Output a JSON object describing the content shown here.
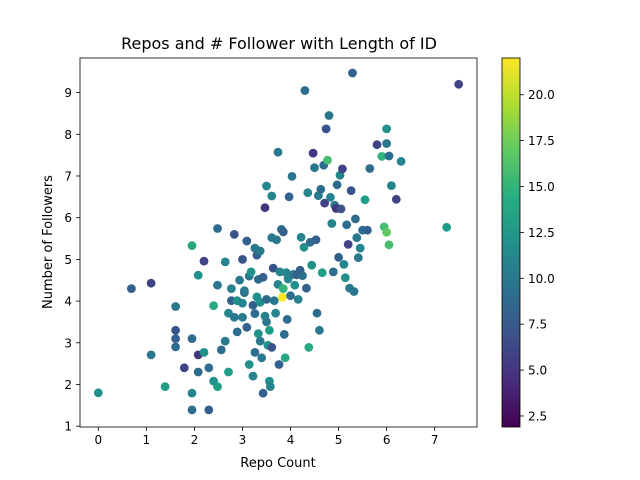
{
  "chart_data": {
    "type": "scatter",
    "title": "Repos and # Follower with Length of ID",
    "xlabel": "Repo Count",
    "ylabel": "Number of Followers",
    "xlim": [
      -0.38,
      7.88
    ],
    "ylim": [
      0.98,
      9.83
    ],
    "xticks": [
      0,
      1,
      2,
      3,
      4,
      5,
      6,
      7
    ],
    "yticks": [
      1,
      2,
      3,
      4,
      5,
      6,
      7,
      8,
      9
    ],
    "colorbar": {
      "label": "",
      "range": [
        1.9,
        22.0
      ],
      "ticks": [
        2.5,
        5.0,
        7.5,
        10.0,
        12.5,
        15.0,
        17.5,
        20.0
      ],
      "colormap": "viridis"
    },
    "points": [
      [
        0.0,
        1.8,
        12
      ],
      [
        0.69,
        4.3,
        8
      ],
      [
        1.1,
        4.43,
        6
      ],
      [
        1.1,
        2.71,
        10
      ],
      [
        1.39,
        1.95,
        13
      ],
      [
        1.61,
        3.87,
        10
      ],
      [
        1.61,
        3.3,
        7
      ],
      [
        1.61,
        3.1,
        8
      ],
      [
        1.61,
        2.9,
        9
      ],
      [
        1.79,
        2.4,
        6
      ],
      [
        1.95,
        5.33,
        14
      ],
      [
        1.95,
        3.1,
        9
      ],
      [
        1.95,
        1.79,
        11
      ],
      [
        1.95,
        1.39,
        9
      ],
      [
        2.08,
        4.62,
        12
      ],
      [
        2.08,
        2.71,
        5
      ],
      [
        2.08,
        2.3,
        9
      ],
      [
        2.2,
        2.77,
        12
      ],
      [
        2.2,
        4.96,
        6
      ],
      [
        2.3,
        1.39,
        8
      ],
      [
        2.3,
        2.4,
        9
      ],
      [
        2.4,
        3.89,
        14
      ],
      [
        2.4,
        2.08,
        12
      ],
      [
        2.48,
        5.74,
        9
      ],
      [
        2.48,
        4.38,
        10
      ],
      [
        2.48,
        1.95,
        13
      ],
      [
        2.56,
        2.83,
        9
      ],
      [
        2.64,
        4.94,
        11
      ],
      [
        2.64,
        3.04,
        10
      ],
      [
        2.71,
        3.71,
        11
      ],
      [
        2.71,
        2.3,
        13
      ],
      [
        2.77,
        4.3,
        11
      ],
      [
        2.77,
        4.01,
        8
      ],
      [
        2.83,
        3.61,
        10
      ],
      [
        2.83,
        5.6,
        7
      ],
      [
        2.89,
        4.01,
        12
      ],
      [
        2.89,
        3.26,
        9
      ],
      [
        2.94,
        4.5,
        10
      ],
      [
        3.0,
        5.0,
        7
      ],
      [
        3.0,
        3.95,
        11
      ],
      [
        3.0,
        3.61,
        10
      ],
      [
        3.04,
        4.2,
        9
      ],
      [
        3.04,
        4.25,
        10
      ],
      [
        3.09,
        5.44,
        8
      ],
      [
        3.09,
        3.37,
        8
      ],
      [
        3.14,
        2.48,
        12
      ],
      [
        3.14,
        4.6,
        10
      ],
      [
        3.18,
        4.7,
        12
      ],
      [
        3.22,
        2.2,
        11
      ],
      [
        3.22,
        3.9,
        8
      ],
      [
        3.26,
        5.27,
        10
      ],
      [
        3.26,
        3.7,
        9
      ],
      [
        3.26,
        2.77,
        9
      ],
      [
        3.3,
        5.1,
        8
      ],
      [
        3.3,
        4.1,
        12
      ],
      [
        3.33,
        3.22,
        12
      ],
      [
        3.33,
        4.52,
        9
      ],
      [
        3.37,
        5.2,
        10
      ],
      [
        3.37,
        3.97,
        12
      ],
      [
        3.37,
        3.04,
        10
      ],
      [
        3.4,
        2.64,
        10
      ],
      [
        3.43,
        1.79,
        8
      ],
      [
        3.43,
        4.57,
        8
      ],
      [
        3.47,
        6.24,
        5
      ],
      [
        3.47,
        3.64,
        11
      ],
      [
        3.5,
        6.76,
        11
      ],
      [
        3.5,
        4.04,
        9
      ],
      [
        3.5,
        3.5,
        10
      ],
      [
        3.53,
        2.94,
        12
      ],
      [
        3.56,
        3.3,
        13
      ],
      [
        3.56,
        2.08,
        12
      ],
      [
        3.58,
        1.95,
        11
      ],
      [
        3.61,
        6.52,
        11
      ],
      [
        3.61,
        5.52,
        10
      ],
      [
        3.61,
        2.89,
        7
      ],
      [
        3.64,
        4.79,
        7
      ],
      [
        3.66,
        4.01,
        10
      ],
      [
        3.69,
        3.71,
        11
      ],
      [
        3.71,
        5.47,
        10
      ],
      [
        3.74,
        7.57,
        10
      ],
      [
        3.74,
        4.4,
        11
      ],
      [
        3.76,
        2.48,
        8
      ],
      [
        3.78,
        4.7,
        11
      ],
      [
        3.81,
        5.72,
        9
      ],
      [
        3.83,
        4.09,
        22
      ],
      [
        3.85,
        5.66,
        8
      ],
      [
        3.85,
        4.3,
        15
      ],
      [
        3.87,
        3.2,
        9
      ],
      [
        3.89,
        2.64,
        14
      ],
      [
        3.91,
        4.68,
        11
      ],
      [
        3.93,
        3.56,
        9
      ],
      [
        3.95,
        4.53,
        11
      ],
      [
        3.97,
        6.5,
        8
      ],
      [
        4.0,
        4.13,
        9
      ],
      [
        4.03,
        6.99,
        10
      ],
      [
        4.06,
        4.64,
        10
      ],
      [
        4.09,
        4.38,
        12
      ],
      [
        4.13,
        4.63,
        8
      ],
      [
        4.16,
        4.04,
        11
      ],
      [
        4.2,
        4.74,
        8
      ],
      [
        4.22,
        5.53,
        11
      ],
      [
        4.25,
        4.61,
        9
      ],
      [
        4.28,
        5.29,
        12
      ],
      [
        4.3,
        9.05,
        9
      ],
      [
        4.33,
        4.31,
        8
      ],
      [
        4.36,
        6.6,
        11
      ],
      [
        4.38,
        2.89,
        14
      ],
      [
        4.41,
        5.41,
        9
      ],
      [
        4.44,
        4.86,
        12
      ],
      [
        4.47,
        7.55,
        5
      ],
      [
        4.5,
        7.2,
        10
      ],
      [
        4.53,
        5.47,
        8
      ],
      [
        4.55,
        3.71,
        9
      ],
      [
        4.58,
        6.53,
        10
      ],
      [
        4.6,
        3.3,
        10
      ],
      [
        4.63,
        6.68,
        9
      ],
      [
        4.66,
        4.68,
        13
      ],
      [
        4.69,
        7.26,
        9
      ],
      [
        4.71,
        6.35,
        6
      ],
      [
        4.74,
        8.13,
        7
      ],
      [
        4.77,
        7.38,
        16
      ],
      [
        4.8,
        8.45,
        10
      ],
      [
        4.83,
        6.49,
        11
      ],
      [
        4.86,
        5.86,
        11
      ],
      [
        4.89,
        4.7,
        9
      ],
      [
        4.92,
        6.3,
        10
      ],
      [
        4.95,
        6.22,
        5
      ],
      [
        4.97,
        6.79,
        9
      ],
      [
        5.0,
        5.05,
        8
      ],
      [
        5.03,
        7.02,
        11
      ],
      [
        5.05,
        6.21,
        7
      ],
      [
        5.08,
        7.17,
        6
      ],
      [
        5.11,
        4.88,
        11
      ],
      [
        5.14,
        4.56,
        12
      ],
      [
        5.17,
        5.83,
        9
      ],
      [
        5.2,
        5.36,
        6
      ],
      [
        5.23,
        4.31,
        10
      ],
      [
        5.26,
        6.65,
        7
      ],
      [
        5.29,
        9.47,
        8
      ],
      [
        5.32,
        4.23,
        10
      ],
      [
        5.35,
        5.97,
        9
      ],
      [
        5.38,
        5.52,
        10
      ],
      [
        5.41,
        5.04,
        10
      ],
      [
        5.45,
        5.27,
        11
      ],
      [
        5.5,
        5.7,
        9
      ],
      [
        5.55,
        6.43,
        13
      ],
      [
        5.6,
        5.7,
        8
      ],
      [
        5.65,
        7.18,
        9
      ],
      [
        5.8,
        7.75,
        6
      ],
      [
        5.9,
        7.47,
        15
      ],
      [
        5.95,
        5.78,
        16
      ],
      [
        6.0,
        5.65,
        17
      ],
      [
        6.05,
        5.35,
        16
      ],
      [
        6.0,
        7.78,
        10
      ],
      [
        6.0,
        8.13,
        12
      ],
      [
        6.05,
        7.48,
        9
      ],
      [
        6.1,
        6.77,
        11
      ],
      [
        6.2,
        6.44,
        6
      ],
      [
        6.3,
        7.35,
        11
      ],
      [
        7.25,
        5.77,
        13
      ],
      [
        7.5,
        9.2,
        6
      ]
    ]
  }
}
